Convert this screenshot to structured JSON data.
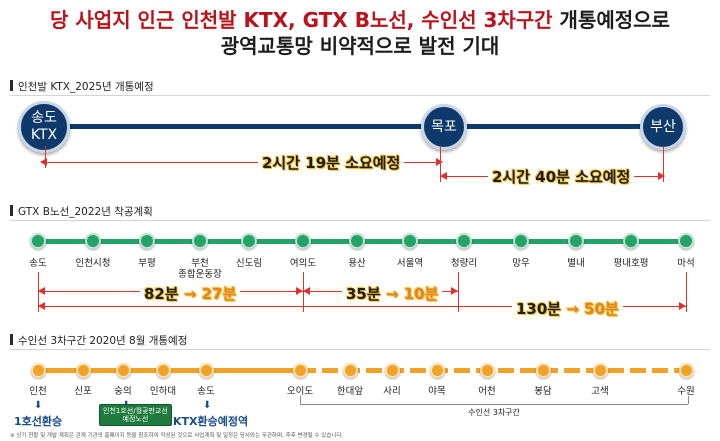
{
  "header": {
    "line1_red": "당 사업지 인근 인천발 KTX, GTX B노선, 수인선 3차구간",
    "line1_dark": " 개통예정으로",
    "line2": "광역교통망 비약적으로 발전 기대"
  },
  "ktx": {
    "title": "인천발 KTX_2025년 개통예정",
    "stations": [
      "송도\nKTX",
      "목포",
      "부산"
    ],
    "time1": "2시간 19분 소요예정",
    "time2": "2시간 40분 소요예정",
    "colors": {
      "node": "#0e3a6b",
      "track": "#0e3a6b"
    }
  },
  "gtx": {
    "title": "GTX B노선_2022년 착공계획",
    "stations": [
      "송도",
      "인천시청",
      "부평",
      "부천\n종합운동장",
      "신도림",
      "여의도",
      "용산",
      "서울역",
      "청량리",
      "망우",
      "별내",
      "평내호평",
      "마석"
    ],
    "time1_before": "82분",
    "time1_after": "27분",
    "time2_before": "35분",
    "time2_after": "10분",
    "time3_before": "130분",
    "time3_after": "50분",
    "arrow": "→",
    "colors": {
      "node": "#23a26a",
      "track": "#23a26a"
    }
  },
  "suin": {
    "title": "수인선 3차구간 2020년 8월 개통예정",
    "stations": [
      "인천",
      "신포",
      "숭의",
      "인하대",
      "송도",
      "오이도",
      "한대앞",
      "사리",
      "야목",
      "어천",
      "봉담",
      "고색",
      "수원"
    ],
    "transfer1": "1호선환승",
    "transfer2_badge": "인천1호선/월곶판교선\n예정노선",
    "transfer3": "KTX환승예정역",
    "segment_label": "수인선 3차구간",
    "down_arrow": "⬇",
    "colors": {
      "node": "#f0a326",
      "track": "#f0a326"
    }
  },
  "footnote": "※ 상기 현황 및 개발 계획은 관계 기관의 홈페이지 등을 참조하여 작성된 것으로 사업계획 및 일정은 당사와는 무관하며, 추후 변경될 수 있습니다."
}
